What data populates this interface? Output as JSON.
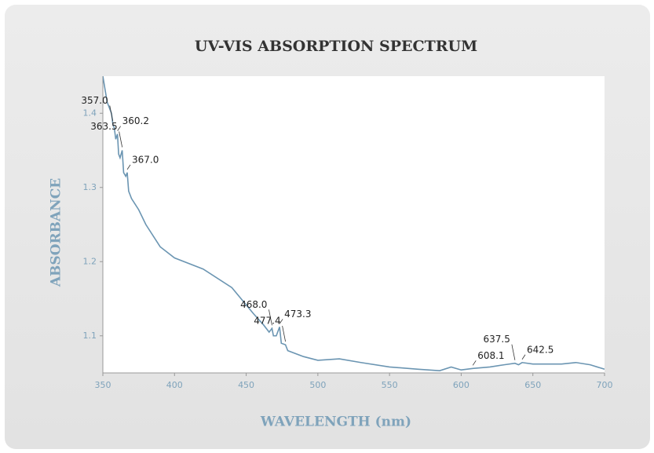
{
  "chart_data": {
    "type": "line",
    "title": "UV-VIS ABSORPTION SPECTRUM",
    "xlabel": "WAVELENGTH (nm)",
    "ylabel": "ABSORBANCE",
    "x": [
      350,
      353,
      356,
      357,
      358,
      359,
      360.2,
      361,
      362,
      363.5,
      364.5,
      366,
      367,
      368,
      370,
      375,
      380,
      390,
      400,
      420,
      440,
      455,
      462,
      466,
      468,
      469,
      471,
      473.3,
      474.5,
      477.4,
      479,
      490,
      500,
      515,
      530,
      550,
      570,
      585,
      593,
      600,
      608.1,
      620,
      630,
      637.5,
      640,
      642.5,
      650,
      670,
      680,
      690,
      700
    ],
    "series": [
      {
        "name": "Absorbance",
        "color": "#6b95b2",
        "values": [
          1.45,
          1.415,
          1.4,
          1.385,
          1.38,
          1.365,
          1.372,
          1.345,
          1.34,
          1.35,
          1.32,
          1.315,
          1.32,
          1.295,
          1.285,
          1.27,
          1.25,
          1.22,
          1.205,
          1.19,
          1.165,
          1.13,
          1.115,
          1.105,
          1.11,
          1.1,
          1.1,
          1.112,
          1.09,
          1.088,
          1.08,
          1.072,
          1.067,
          1.069,
          1.064,
          1.058,
          1.055,
          1.053,
          1.058,
          1.054,
          1.056,
          1.058,
          1.061,
          1.063,
          1.061,
          1.064,
          1.062,
          1.062,
          1.064,
          1.061,
          1.055
        ]
      }
    ],
    "annotations": [
      {
        "x": 357.0,
        "text": "357.0"
      },
      {
        "x": 360.2,
        "text": "360.2"
      },
      {
        "x": 363.5,
        "text": "363.5"
      },
      {
        "x": 367.0,
        "text": "367.0"
      },
      {
        "x": 468.0,
        "text": "468.0"
      },
      {
        "x": 473.3,
        "text": "473.3"
      },
      {
        "x": 477.4,
        "text": "477.4"
      },
      {
        "x": 608.1,
        "text": "608.1"
      },
      {
        "x": 637.5,
        "text": "637.5"
      },
      {
        "x": 642.5,
        "text": "642.5"
      }
    ],
    "xlim": [
      350,
      700
    ],
    "xticks": [
      350,
      400,
      450,
      500,
      550,
      600,
      650,
      700
    ],
    "ylim": [
      1.05,
      1.45
    ],
    "yticks": [
      1.1,
      1.2,
      1.3,
      1.4
    ]
  }
}
